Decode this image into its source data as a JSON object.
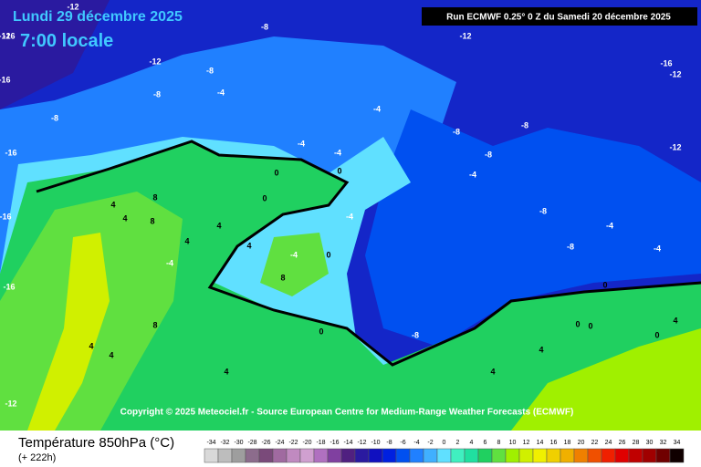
{
  "header": {
    "date": "Lundi 29 décembre 2025",
    "time": "7:00 locale",
    "run": "Run ECMWF 0.25° 0 Z du Samedi 20 décembre 2025"
  },
  "copyright": "Copyright © 2025 Meteociel.fr - Source European Centre for Medium-Range Weather Forecasts (ECMWF)",
  "map_labels": [
    -12,
    -8,
    -16,
    -12,
    -12,
    -16,
    -8,
    -8,
    -8,
    -4,
    -8,
    -16,
    -4,
    -4,
    -4,
    -8,
    -12,
    -8,
    -4,
    -4,
    0,
    0,
    0,
    0,
    -4,
    8,
    4,
    4,
    8,
    4,
    4,
    4,
    -4,
    8,
    0,
    0,
    8,
    4,
    4,
    4,
    -8,
    -8,
    -8,
    -4,
    -4,
    0,
    0,
    0,
    4,
    4,
    4,
    -16,
    -12,
    -16,
    -12,
    -16,
    -12
  ],
  "legend": {
    "title": "Température 850hPa (°C)",
    "subtitle": "(+ 222h)",
    "labels": [
      -34,
      -32,
      -30,
      -28,
      -26,
      -24,
      -22,
      -20,
      -18,
      -16,
      -14,
      -12,
      -10,
      -8,
      -6,
      -4,
      -2,
      0,
      2,
      4,
      6,
      8,
      10,
      12,
      14,
      16,
      18,
      20,
      22,
      24,
      26,
      28,
      30,
      32,
      34
    ],
    "colors": [
      "#d9d9d9",
      "#bdbdbd",
      "#9e9e9e",
      "#8c6c8c",
      "#7a4a7a",
      "#a06aa0",
      "#c08ac0",
      "#d0a0d0",
      "#b070c0",
      "#8040a0",
      "#502080",
      "#2a1aa0",
      "#1010c0",
      "#0020e0",
      "#0050f0",
      "#2080ff",
      "#40b0ff",
      "#60e0ff",
      "#40f0c0",
      "#20e0a0",
      "#20d060",
      "#60e040",
      "#a0f000",
      "#d0f000",
      "#f0f000",
      "#f0d000",
      "#f0b000",
      "#f08000",
      "#f05000",
      "#f02000",
      "#e00000",
      "#c00000",
      "#a00000",
      "#700000",
      "#100000"
    ]
  }
}
